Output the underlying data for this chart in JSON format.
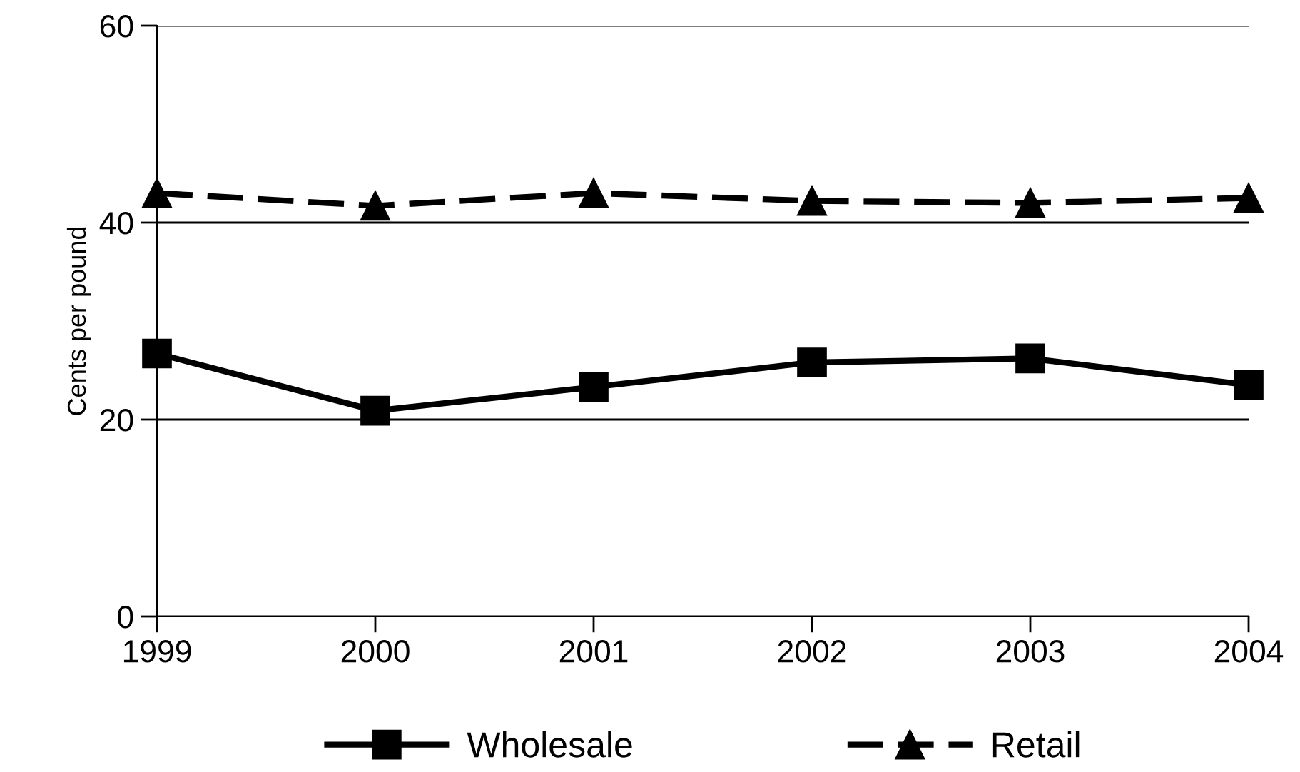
{
  "chart_data": {
    "type": "line",
    "ylabel": "Cents per pound",
    "categories": [
      "1999",
      "2000",
      "2001",
      "2002",
      "2003",
      "2004"
    ],
    "series": [
      {
        "name": "Wholesale",
        "color": "#000000",
        "marker": "square",
        "line_style": "solid",
        "values": [
          26.7,
          20.9,
          23.3,
          25.8,
          26.2,
          23.5
        ]
      },
      {
        "name": "Retail",
        "color": "#000000",
        "marker": "triangle",
        "line_style": "dashed",
        "values": [
          43.0,
          41.7,
          43.0,
          42.2,
          42.0,
          42.5
        ]
      }
    ],
    "ylim": [
      0,
      60
    ],
    "yticks": [
      0,
      20,
      40,
      60
    ],
    "grid": "y",
    "legend": "bottom"
  }
}
